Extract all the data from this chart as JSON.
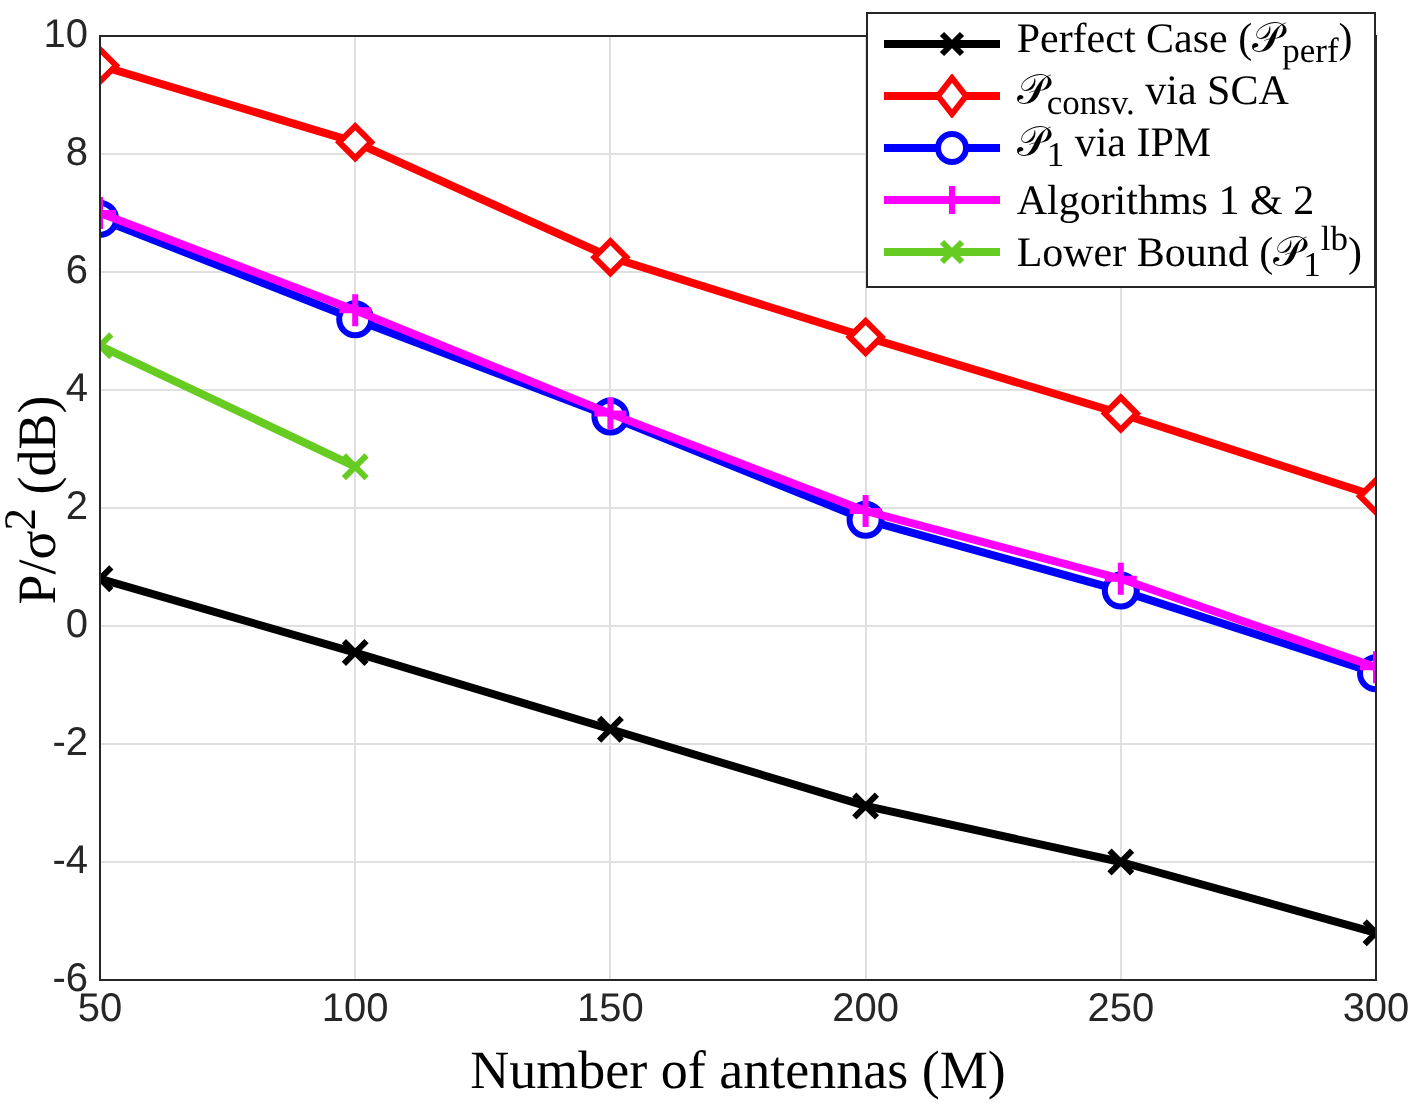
{
  "chart_data": {
    "type": "line",
    "xlabel": "Number of antennas (M)",
    "ylabel": "P/σ$^{2}$ (dB)",
    "x": [
      50,
      100,
      150,
      200,
      250,
      300
    ],
    "series": [
      {
        "name": "Perfect Case (𝒫$_{perf}$)",
        "color": "#000000",
        "marker": "cross",
        "values": [
          0.8,
          -0.45,
          -1.75,
          -3.05,
          -4.0,
          -5.2
        ]
      },
      {
        "name": "𝒫$_{consv.}$ via SCA",
        "color": "#ff0000",
        "marker": "diamond",
        "values": [
          9.5,
          8.2,
          6.25,
          4.9,
          3.6,
          2.2
        ]
      },
      {
        "name": "𝒫$_{1}$ via IPM",
        "color": "#0000ff",
        "marker": "circle",
        "values": [
          6.9,
          5.2,
          3.55,
          1.8,
          0.6,
          -0.8
        ]
      },
      {
        "name": "Algorithms 1 & 2",
        "color": "#ff00ff",
        "marker": "plus",
        "values": [
          7.0,
          5.35,
          3.6,
          1.95,
          0.8,
          -0.7
        ]
      },
      {
        "name": "Lower Bound (𝒫$_{1}$$^{lb}$)",
        "color": "#66cc22",
        "marker": "cross",
        "values": [
          4.75,
          2.7,
          null,
          null,
          null,
          null
        ]
      }
    ],
    "xlim": [
      50,
      300
    ],
    "xticks": [
      50,
      100,
      150,
      200,
      250,
      300
    ],
    "ylim": [
      -6,
      10
    ],
    "yticks": [
      -6,
      -4,
      -2,
      0,
      2,
      4,
      6,
      8,
      10
    ],
    "grid": true,
    "legend": "top right",
    "line_style": "solid"
  }
}
